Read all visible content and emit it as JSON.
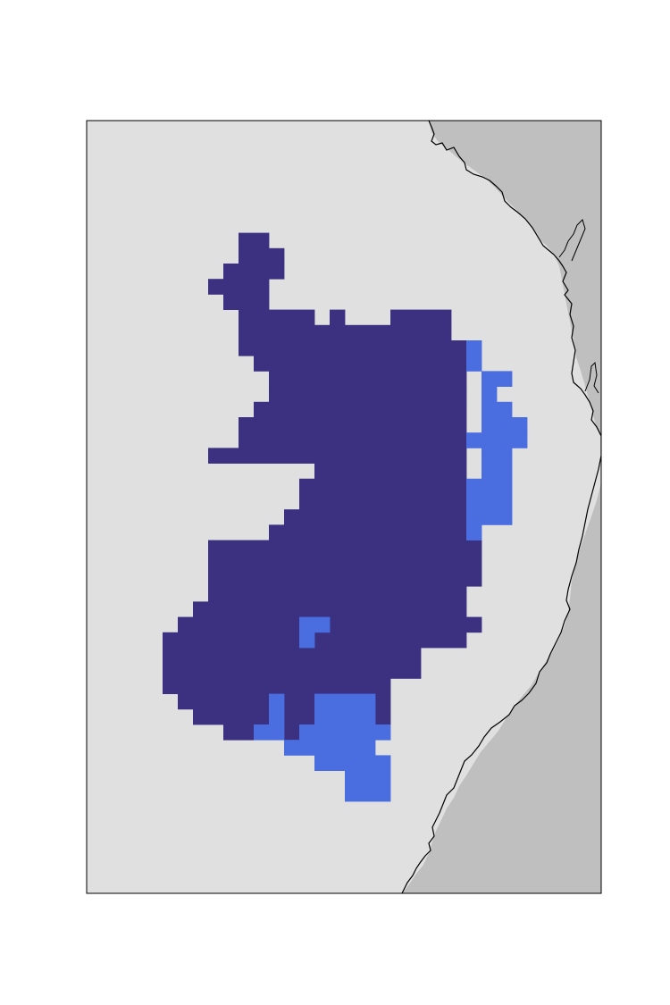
{
  "map": {
    "colors": {
      "page_background": "#ffffff",
      "ocean": "#e0e0e0",
      "land": "#bfbfbf",
      "coastline": "#000000",
      "frame": "#000000",
      "region_primary": "#3b3180",
      "region_secondary": "#4a6ee0"
    },
    "layers": [
      {
        "id": "region-primary",
        "color_key": "region_primary"
      },
      {
        "id": "region-secondary",
        "color_key": "region_secondary"
      }
    ]
  }
}
